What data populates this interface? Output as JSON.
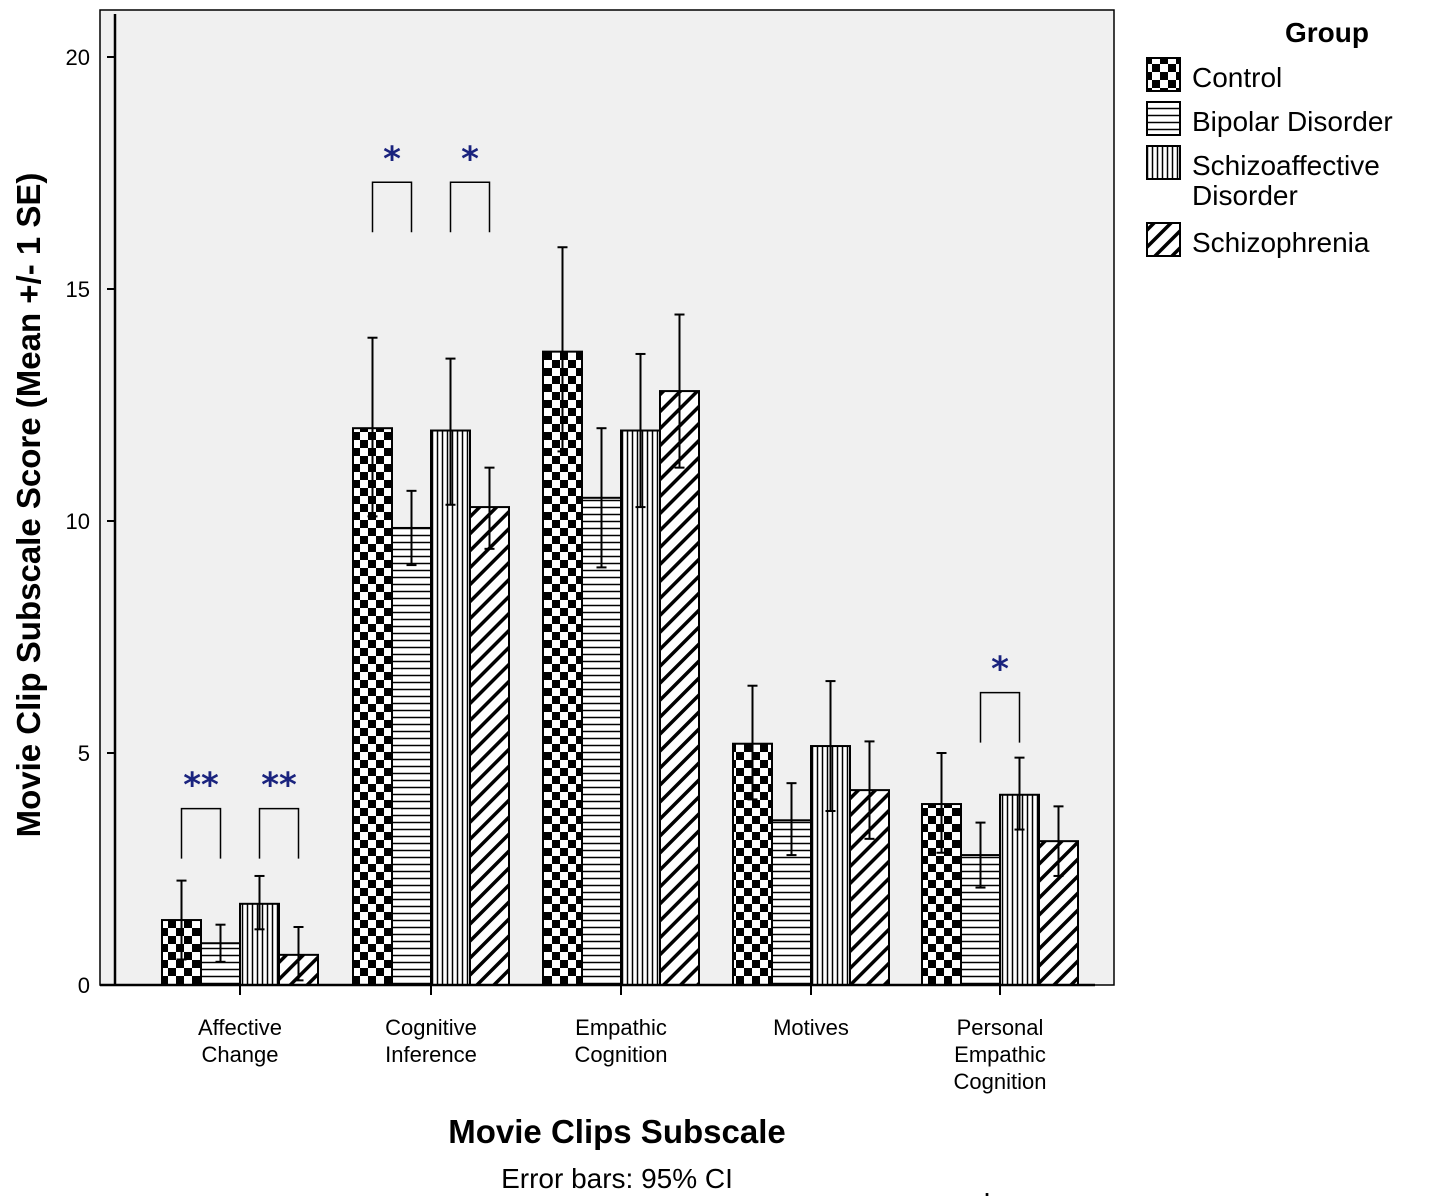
{
  "chart_data": {
    "type": "bar",
    "xlabel": "Movie Clips Subscale",
    "ylabel": "Movie Clip Subscale Score (Mean +/- 1 SE)",
    "note": "Error bars: 95% CI",
    "ylim": [
      0,
      21
    ],
    "yticks": [
      0,
      5,
      10,
      15,
      20
    ],
    "grid": false,
    "legend_position": "top-right",
    "legend_title": "Group",
    "categories": [
      [
        "Affective",
        "Change"
      ],
      [
        "Cognitive",
        "Inference"
      ],
      [
        "Empathic",
        "Cognition"
      ],
      [
        "Motives"
      ],
      [
        "Personal",
        "Empathic",
        "Cognition"
      ]
    ],
    "series": [
      {
        "name": "Control",
        "legend_lines": [
          "Control"
        ],
        "pattern": "checker",
        "values": [
          1.4,
          12.0,
          13.65,
          5.2,
          3.9
        ],
        "error_low": [
          0.55,
          10.1,
          11.5,
          4.0,
          2.85
        ],
        "error_high": [
          2.25,
          13.95,
          15.9,
          6.45,
          5.0
        ]
      },
      {
        "name": "Bipolar Disorder",
        "legend_lines": [
          "Bipolar Disorder"
        ],
        "pattern": "horizontal",
        "values": [
          0.9,
          9.85,
          10.5,
          3.55,
          2.8
        ],
        "error_low": [
          0.5,
          9.05,
          9.0,
          2.8,
          2.1
        ],
        "error_high": [
          1.3,
          10.65,
          12.0,
          4.35,
          3.5
        ]
      },
      {
        "name": "Schizoaffective Disorder",
        "legend_lines": [
          "Schizoaffective",
          "Disorder"
        ],
        "pattern": "vertical",
        "values": [
          1.75,
          11.95,
          11.95,
          5.15,
          4.1
        ],
        "error_low": [
          1.2,
          10.35,
          10.3,
          3.75,
          3.35
        ],
        "error_high": [
          2.35,
          13.5,
          13.6,
          6.55,
          4.9
        ]
      },
      {
        "name": "Schizophrenia",
        "legend_lines": [
          "Schizophrenia"
        ],
        "pattern": "diagonal",
        "values": [
          0.65,
          10.3,
          12.8,
          4.2,
          3.1
        ],
        "error_low": [
          0.1,
          9.4,
          11.15,
          3.15,
          2.35
        ],
        "error_high": [
          1.25,
          11.15,
          14.45,
          5.25,
          3.85
        ]
      }
    ],
    "significance": [
      {
        "category": 0,
        "from_series": 0,
        "to_series": 1,
        "label": "**",
        "y": 3.8
      },
      {
        "category": 0,
        "from_series": 2,
        "to_series": 3,
        "label": "**",
        "y": 3.8
      },
      {
        "category": 1,
        "from_series": 0,
        "to_series": 1,
        "label": "*",
        "y": 17.3
      },
      {
        "category": 1,
        "from_series": 2,
        "to_series": 3,
        "label": "*",
        "y": 17.3
      },
      {
        "category": 4,
        "from_series": 1,
        "to_series": 2,
        "label": "*",
        "y": 6.3
      }
    ],
    "stray_mark": "."
  }
}
